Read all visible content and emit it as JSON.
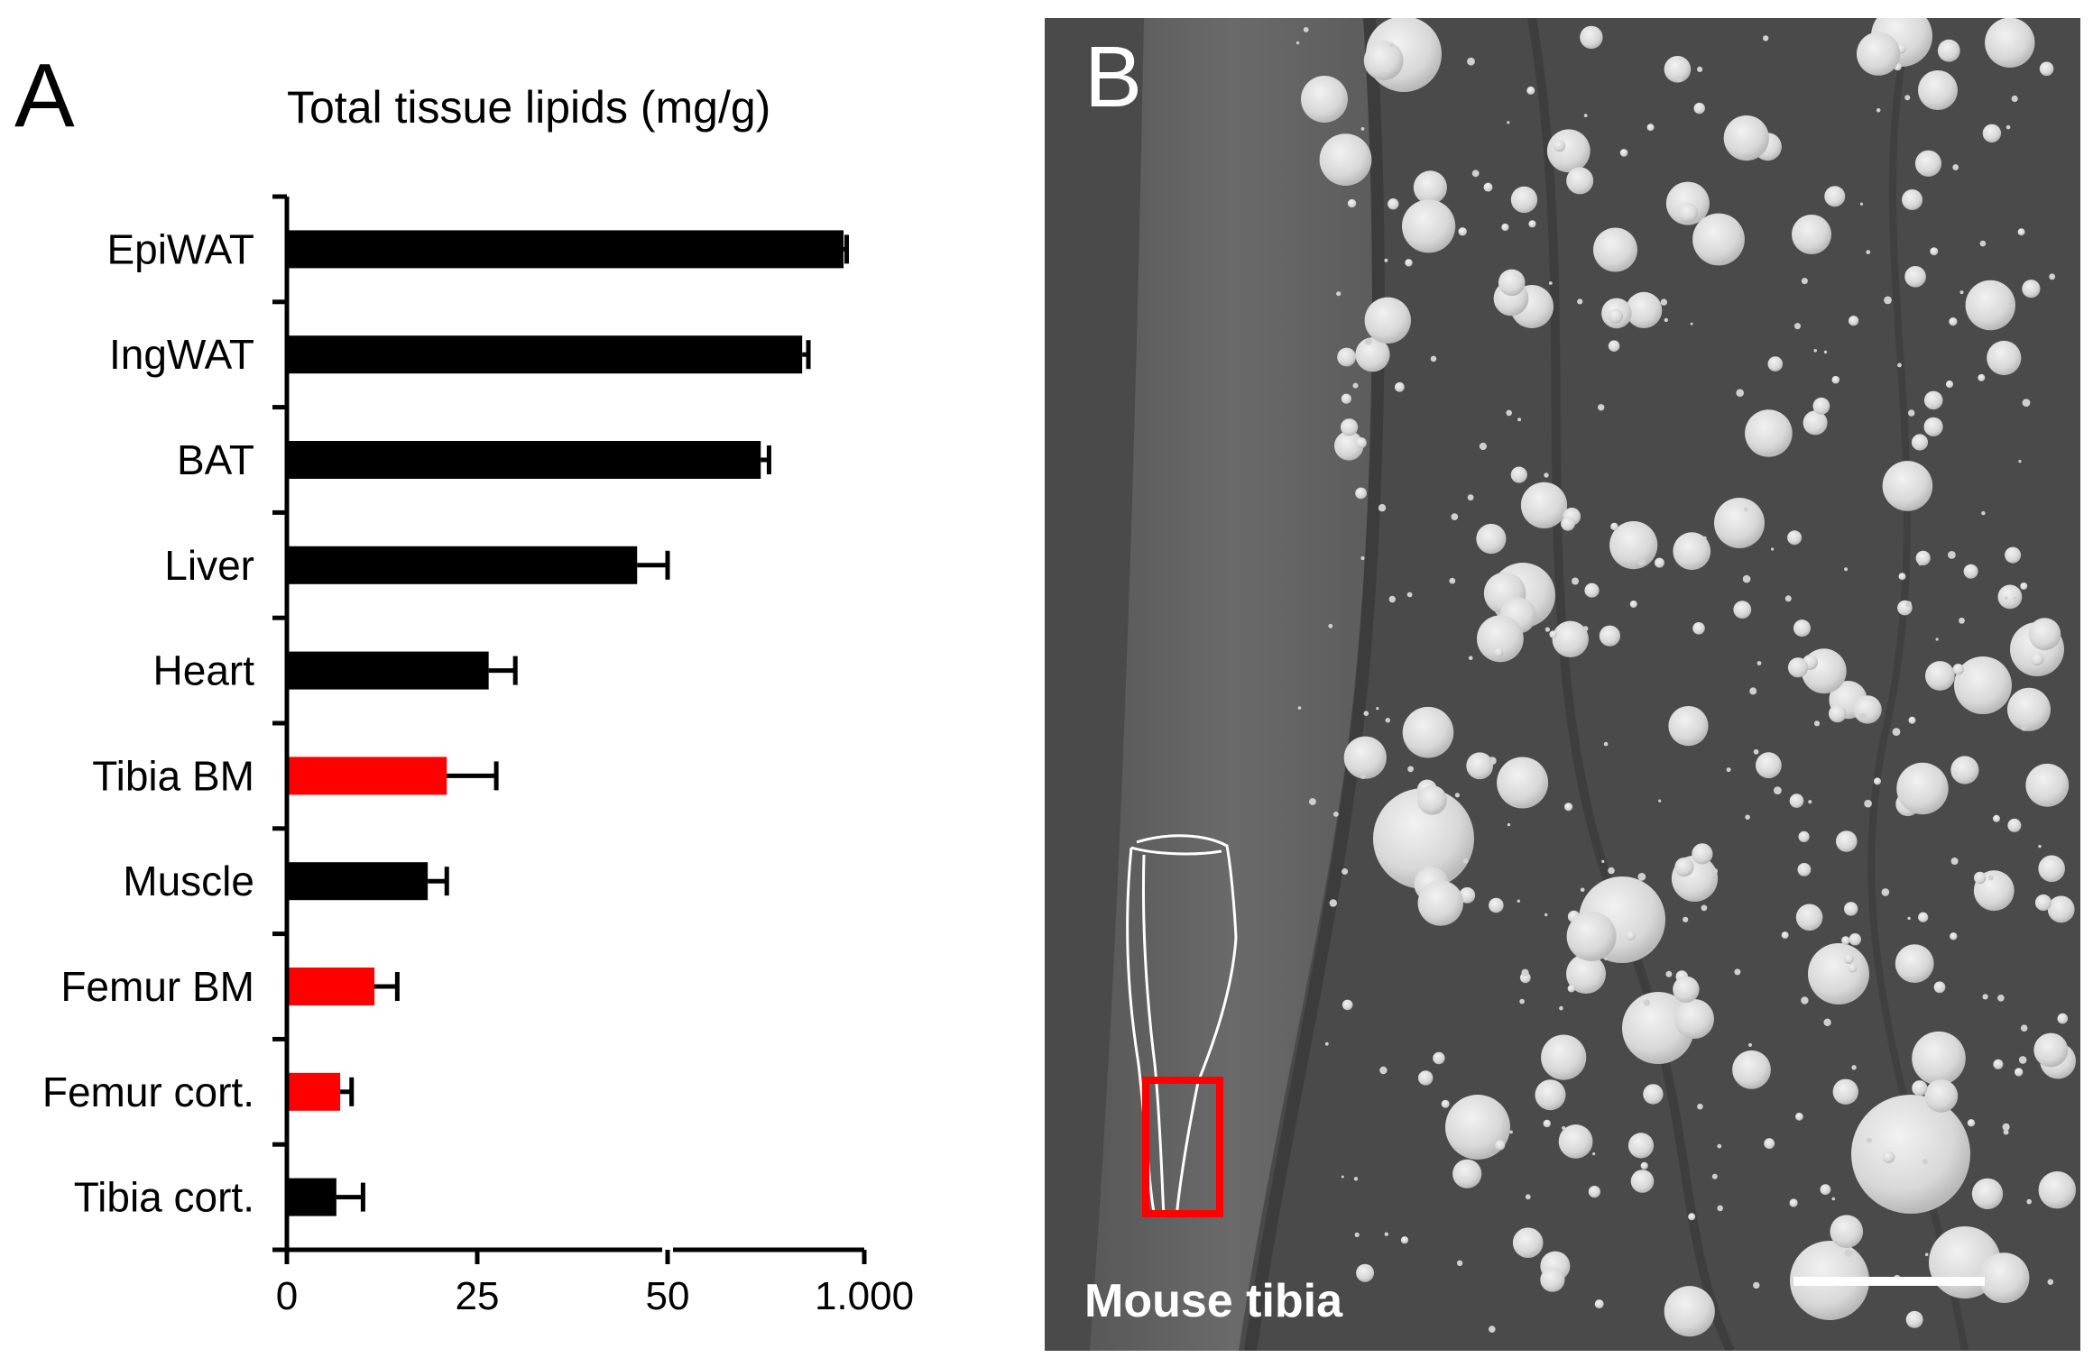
{
  "panel_a": {
    "label": "A"
  },
  "panel_b": {
    "label": "B",
    "caption": "Mouse tibia",
    "colors": {
      "background": "#4a4a4a",
      "droplet": "#dcdcdc",
      "highlight_box": "#ff0000",
      "scale_bar": "#ffffff"
    }
  },
  "chart_data": {
    "type": "bar",
    "orientation": "horizontal",
    "title": "Total tissue lipids (mg/g)",
    "xlabel": "",
    "ylabel": "",
    "categories": [
      "EpiWAT",
      "IngWAT",
      "BAT",
      "Liver",
      "Heart",
      "Tibia BM",
      "Muscle",
      "Femur BM",
      "Femur cort.",
      "Tibia cort."
    ],
    "values": [
      900,
      700,
      500,
      46,
      26.5,
      21,
      18.5,
      11.5,
      7,
      6.5
    ],
    "errors": [
      15,
      30,
      40,
      4,
      3.5,
      6.5,
      2.5,
      3,
      1.5,
      3.5
    ],
    "bar_colors": [
      "#000000",
      "#000000",
      "#000000",
      "#000000",
      "#000000",
      "#ff0000",
      "#000000",
      "#ff0000",
      "#ff0000",
      "#000000"
    ],
    "bar_colors_note": "",
    "x_axis": {
      "segments": [
        [
          0,
          50
        ],
        [
          50,
          1000
        ]
      ],
      "break": true
    },
    "xticks": [
      {
        "value": 0,
        "label": "0"
      },
      {
        "value": 25,
        "label": "25"
      },
      {
        "value": 50,
        "label": "50"
      },
      {
        "value": 1000,
        "label": "1.000"
      }
    ],
    "colors": {
      "bone_marrow": "#ff0000",
      "other": "#000000"
    }
  }
}
